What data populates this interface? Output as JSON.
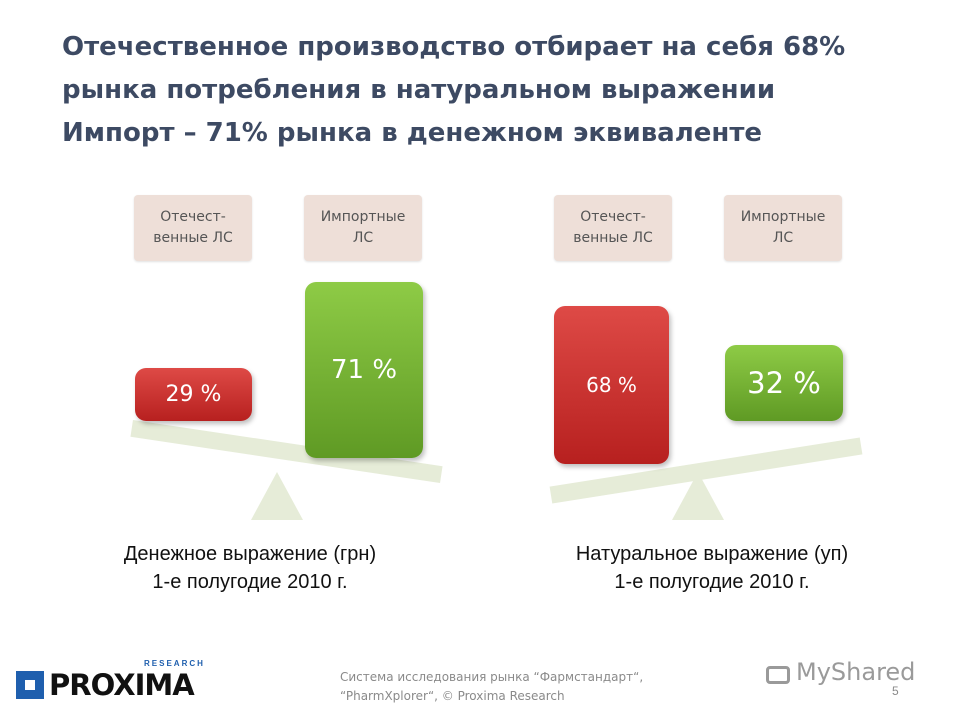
{
  "title": {
    "line1": "Отечественное производство отбирает на себя 68%",
    "line2": "рынка потребления в натуральном выражении",
    "line3": "Импорт – 71% рынка в денежном эквиваленте"
  },
  "colors": {
    "domestic": "#c62d2b",
    "import": "#74b232",
    "title": "#3d4a63"
  },
  "chart_data": [
    {
      "type": "bar",
      "categories": [
        "Отечест-венные ЛС",
        "Импортные ЛС"
      ],
      "values": [
        29,
        71
      ],
      "value_labels": [
        "29 %",
        "71 %"
      ],
      "unit": "%",
      "caption_line1": "Денежное выражение (грн)",
      "caption_line2": "1-е полугодие 2010 г.",
      "category_labels": [
        {
          "line1": "Отечест-",
          "line2": "венные ЛС"
        },
        {
          "line1": "Импортные",
          "line2": "ЛС"
        }
      ]
    },
    {
      "type": "bar",
      "categories": [
        "Отечест-венные ЛС",
        "Импортные ЛС"
      ],
      "values": [
        68,
        32
      ],
      "value_labels": [
        "68 %",
        "32 %"
      ],
      "unit": "%",
      "caption_line1": "Натуральное выражение (уп)",
      "caption_line2": "1-е полугодие 2010 г.",
      "category_labels": [
        {
          "line1": "Отечест-",
          "line2": "венные ЛС"
        },
        {
          "line1": "Импортные",
          "line2": "ЛС"
        }
      ]
    }
  ],
  "footer": {
    "line1": "Система исследования рынка “Фармстандарт“,",
    "line2": "“PharmXplorer“, © Proxima Research"
  },
  "logo": {
    "main": "PROXIMA",
    "sub": "RESEARCH"
  },
  "watermark": "MyShared",
  "page_number": "5"
}
